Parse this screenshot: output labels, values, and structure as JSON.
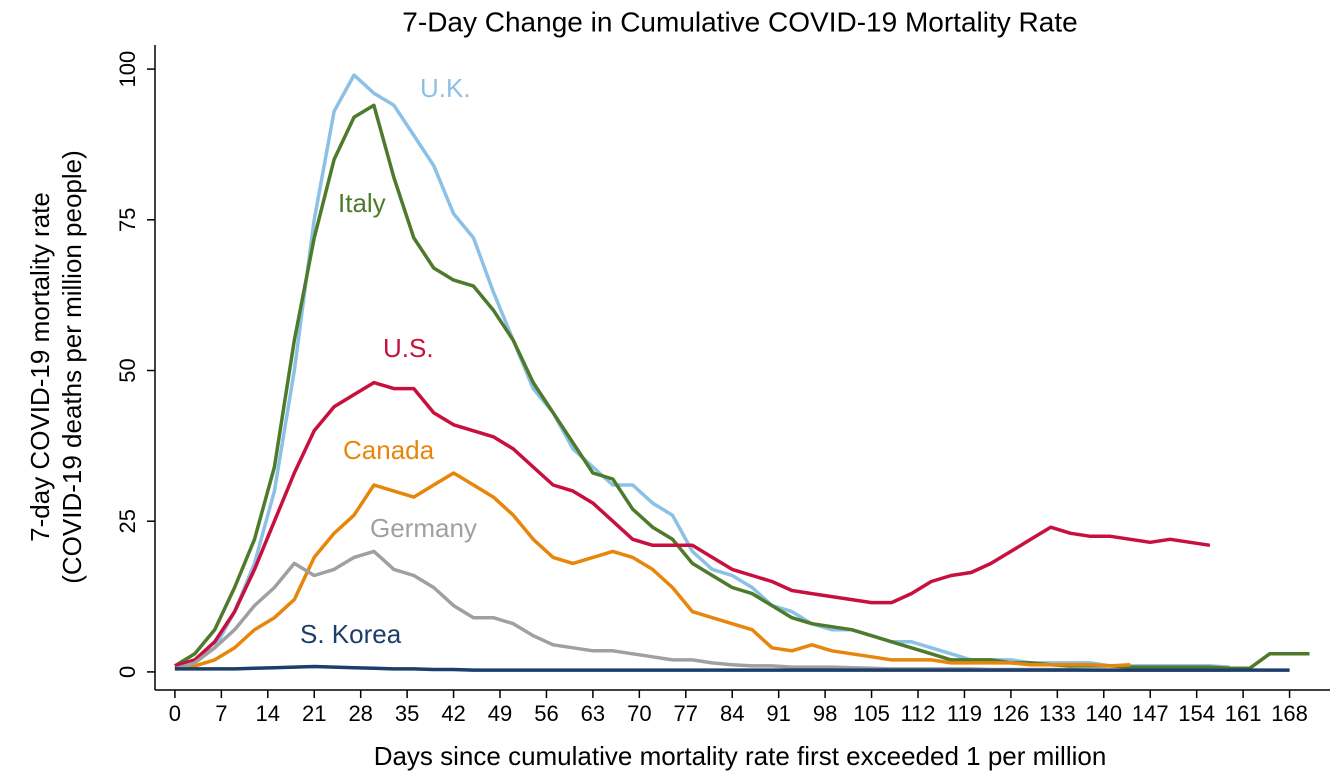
{
  "chart_data": {
    "type": "line",
    "title": "7-Day Change in Cumulative COVID-19 Mortality Rate",
    "xlabel": "Days since cumulative mortality rate first exceeded 1 per million",
    "ylabel": [
      "7-day COVID-19 mortality rate",
      "(COVID-19 deaths per million people)"
    ],
    "xlim": [
      -3,
      175
    ],
    "ylim": [
      -3,
      104
    ],
    "xticks": [
      0,
      7,
      14,
      21,
      28,
      35,
      42,
      49,
      56,
      63,
      70,
      77,
      84,
      91,
      98,
      105,
      112,
      119,
      126,
      133,
      140,
      147,
      154,
      161,
      168
    ],
    "yticks": [
      0,
      25,
      50,
      75,
      100
    ],
    "grid": false,
    "x": [
      0,
      3,
      6,
      9,
      12,
      15,
      18,
      21,
      24,
      27,
      30,
      33,
      36,
      39,
      42,
      45,
      48,
      51,
      54,
      57,
      60,
      63,
      66,
      69,
      72,
      75,
      78,
      81,
      84,
      87,
      90,
      93,
      96,
      99,
      102,
      105,
      108,
      111,
      114,
      117,
      120,
      123,
      126,
      129,
      132,
      135,
      138,
      141,
      144,
      147,
      150,
      153,
      156,
      159,
      162,
      165,
      168,
      171
    ],
    "series": [
      {
        "name": "U.K.",
        "color": "#8cc1e6",
        "values": [
          1,
          2,
          4,
          10,
          18,
          30,
          50,
          75,
          93,
          99,
          96,
          94,
          89,
          84,
          76,
          72,
          63,
          55,
          47,
          43,
          37,
          34,
          31,
          31,
          28,
          26,
          20,
          17,
          16,
          14,
          11,
          10,
          8,
          7,
          7,
          6,
          5,
          5,
          4,
          3,
          2,
          2,
          2,
          1.5,
          1.5,
          1.5,
          1.5,
          1,
          1,
          1,
          1,
          1,
          1,
          0.8,
          null,
          null,
          null,
          null
        ]
      },
      {
        "name": "Italy",
        "color": "#4e7a2c",
        "values": [
          1,
          3,
          7,
          14,
          22,
          34,
          55,
          72,
          85,
          92,
          94,
          82,
          72,
          67,
          65,
          64,
          60,
          55,
          48,
          43,
          38,
          33,
          32,
          27,
          24,
          22,
          18,
          16,
          14,
          13,
          11,
          9,
          8,
          7.5,
          7,
          6,
          5,
          4,
          3,
          2,
          2,
          2,
          1.5,
          1.5,
          1.2,
          1,
          1,
          1,
          0.8,
          0.8,
          0.8,
          0.8,
          0.8,
          0.6,
          0.6,
          3,
          3,
          3
        ]
      },
      {
        "name": "U.S.",
        "color": "#c8103e",
        "values": [
          1,
          2,
          5,
          10,
          17,
          25,
          33,
          40,
          44,
          46,
          48,
          47,
          47,
          43,
          41,
          40,
          39,
          37,
          34,
          31,
          30,
          28,
          25,
          22,
          21,
          21,
          21,
          19,
          17,
          16,
          15,
          13.5,
          13,
          12.5,
          12,
          11.5,
          11.5,
          13,
          15,
          16,
          16.5,
          18,
          20,
          22,
          24,
          23,
          22.5,
          22.5,
          22,
          21.5,
          22,
          21.5,
          21,
          null,
          null,
          null,
          null,
          null
        ]
      },
      {
        "name": "Canada",
        "color": "#e8860c",
        "values": [
          0.5,
          1,
          2,
          4,
          7,
          9,
          12,
          19,
          23,
          26,
          31,
          30,
          29,
          31,
          33,
          31,
          29,
          26,
          22,
          19,
          18,
          19,
          20,
          19,
          17,
          14,
          10,
          9,
          8,
          7,
          4,
          3.5,
          4.5,
          3.5,
          3,
          2.5,
          2,
          2,
          2,
          1.5,
          1.5,
          1.5,
          1.5,
          1.2,
          1.2,
          1.2,
          1.2,
          1,
          1.2,
          null,
          null,
          null,
          null,
          null,
          null,
          null,
          null,
          null
        ]
      },
      {
        "name": "Germany",
        "color": "#a0a0a0",
        "values": [
          0.5,
          1.5,
          4,
          7,
          11,
          14,
          18,
          16,
          17,
          19,
          20,
          17,
          16,
          14,
          11,
          9,
          9,
          8,
          6,
          4.5,
          4,
          3.5,
          3.5,
          3,
          2.5,
          2,
          2,
          1.5,
          1.2,
          1,
          1,
          0.8,
          0.8,
          0.8,
          0.7,
          0.6,
          0.5,
          0.5,
          0.5,
          0.5,
          0.5,
          0.4,
          0.4,
          0.4,
          0.4,
          0.4,
          0.3,
          0.3,
          0.3,
          0.3,
          0.3,
          0.3,
          0.3,
          0.3,
          null,
          null,
          null,
          null
        ]
      },
      {
        "name": "S. Korea",
        "color": "#1c3e6b",
        "values": [
          0.5,
          0.5,
          0.5,
          0.5,
          0.6,
          0.7,
          0.8,
          0.9,
          0.8,
          0.7,
          0.6,
          0.5,
          0.5,
          0.4,
          0.4,
          0.3,
          0.3,
          0.3,
          0.3,
          0.3,
          0.3,
          0.3,
          0.3,
          0.3,
          0.3,
          0.3,
          0.3,
          0.3,
          0.3,
          0.3,
          0.3,
          0.3,
          0.3,
          0.3,
          0.3,
          0.3,
          0.3,
          0.3,
          0.3,
          0.3,
          0.3,
          0.3,
          0.3,
          0.3,
          0.3,
          0.3,
          0.3,
          0.3,
          0.3,
          0.3,
          0.3,
          0.3,
          0.3,
          0.3,
          0.3,
          0.3,
          0.3,
          null
        ]
      }
    ]
  }
}
